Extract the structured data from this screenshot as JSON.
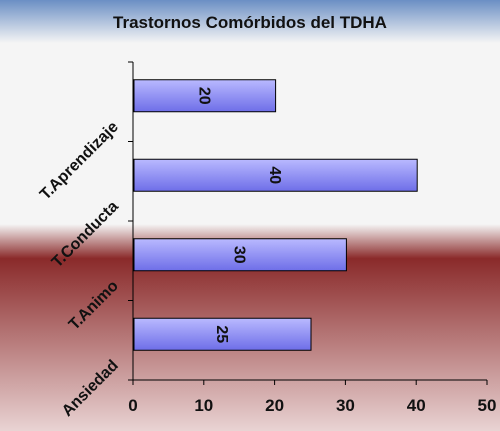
{
  "chart_data": {
    "type": "bar",
    "orientation": "horizontal",
    "title": "Trastornos Comórbidos del TDHA",
    "categories": [
      "T.Aprendizaje",
      "T.Conducta",
      "T.Animo",
      "Ansiedad"
    ],
    "values": [
      20,
      40,
      30,
      25
    ],
    "x_ticks": [
      "0",
      "10",
      "20",
      "30",
      "40",
      "50"
    ],
    "xlim": [
      0,
      50
    ],
    "xlabel": "",
    "ylabel": "",
    "grid": false,
    "legend": "none",
    "data_labels": true
  },
  "colors": {
    "bar_fill_light": "#b9b9ff",
    "bar_fill_dark": "#6e6ee8",
    "bar_stroke": "#000000",
    "background_top": "#6b8fc4",
    "background_mid": "#f5f5f5",
    "background_red": "#8a2a2a",
    "background_bottom": "#e9d3d3"
  }
}
